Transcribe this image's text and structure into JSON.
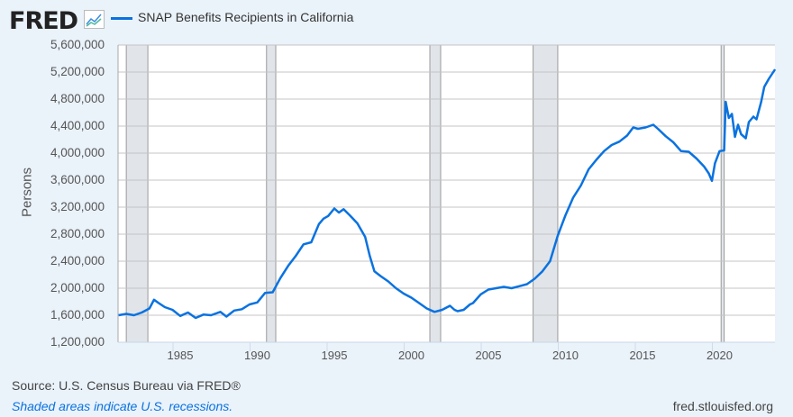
{
  "header": {
    "logo": "FRED",
    "logo_icon": "line-chart-icon"
  },
  "footer": {
    "source": "Source: U.S. Census Bureau via FRED®",
    "note": "Shaded areas indicate U.S. recessions.",
    "site": "fred.stlouisfed.org"
  },
  "chart_data": {
    "type": "line",
    "title": "",
    "xlabel": "",
    "ylabel": "Persons",
    "xlim": [
      1980.9,
      2023.6
    ],
    "ylim": [
      1200000,
      5600000
    ],
    "grid": true,
    "legend_placement": "top-left",
    "yticks": [
      1200000,
      1600000,
      2000000,
      2400000,
      2800000,
      3200000,
      3600000,
      4000000,
      4400000,
      4800000,
      5200000,
      5600000
    ],
    "ytick_labels": [
      "1,200,000",
      "1,600,000",
      "2,000,000",
      "2,400,000",
      "2,800,000",
      "3,200,000",
      "3,600,000",
      "4,000,000",
      "4,400,000",
      "4,800,000",
      "5,200,000",
      "5,600,000"
    ],
    "xticks": [
      1985,
      1990,
      1995,
      2000,
      2005,
      2010,
      2015,
      2020
    ],
    "xtick_labels": [
      "1985",
      "1990",
      "1995",
      "2000",
      "2005",
      "2010",
      "2015",
      "2020"
    ],
    "recessions": [
      [
        1981.5,
        1982.9
      ],
      [
        1990.6,
        1991.2
      ],
      [
        2001.2,
        2001.9
      ],
      [
        2007.9,
        2009.5
      ],
      [
        2020.1,
        2020.3
      ]
    ],
    "colors": {
      "line": "#0a72e0",
      "recession": "#e1e5ea",
      "background": "#eaf2fa"
    },
    "series": [
      {
        "name": "SNAP Benefits Recipients in California",
        "x": [
          1981.0,
          1981.5,
          1982,
          1982.5,
          1983,
          1983.3,
          1983.6,
          1984,
          1984.5,
          1985,
          1985.5,
          1986,
          1986.5,
          1987,
          1987.6,
          1988,
          1988.5,
          1989,
          1989.5,
          1990,
          1990.5,
          1991,
          1991.5,
          1992,
          1992.5,
          1993,
          1993.5,
          1994,
          1994.3,
          1994.6,
          1995,
          1995.3,
          1995.6,
          1996,
          1996.5,
          1997,
          1997.3,
          1997.6,
          1998,
          1998.5,
          1999,
          1999.5,
          2000,
          2000.5,
          2001,
          2001.5,
          2002,
          2002.5,
          2002.8,
          2003,
          2003.4,
          2003.8,
          2004,
          2004.5,
          2005,
          2005.5,
          2006,
          2006.5,
          2007,
          2007.5,
          2008,
          2008.5,
          2009,
          2009.5,
          2010,
          2010.5,
          2011,
          2011.5,
          2012,
          2012.5,
          2013,
          2013.5,
          2014,
          2014.4,
          2014.7,
          2015.2,
          2015.7,
          2016,
          2016.5,
          2017,
          2017.5,
          2018,
          2018.5,
          2019,
          2019.3,
          2019.5,
          2019.7,
          2020,
          2020.3,
          2020.4,
          2020.6,
          2020.8,
          2021,
          2021.2,
          2021.4,
          2021.7,
          2021.9,
          2022.2,
          2022.4,
          2022.7,
          2022.9,
          2023.2,
          2023.6
        ],
        "values": [
          1600000,
          1620000,
          1600000,
          1640000,
          1700000,
          1830000,
          1780000,
          1720000,
          1680000,
          1590000,
          1640000,
          1560000,
          1610000,
          1600000,
          1650000,
          1580000,
          1670000,
          1690000,
          1760000,
          1790000,
          1930000,
          1940000,
          2150000,
          2330000,
          2480000,
          2650000,
          2680000,
          2950000,
          3030000,
          3070000,
          3180000,
          3120000,
          3170000,
          3080000,
          2960000,
          2760000,
          2480000,
          2250000,
          2180000,
          2100000,
          2000000,
          1920000,
          1860000,
          1780000,
          1700000,
          1650000,
          1680000,
          1740000,
          1680000,
          1660000,
          1680000,
          1760000,
          1780000,
          1910000,
          1980000,
          2000000,
          2020000,
          2000000,
          2030000,
          2060000,
          2140000,
          2250000,
          2400000,
          2780000,
          3080000,
          3340000,
          3520000,
          3760000,
          3900000,
          4030000,
          4120000,
          4170000,
          4260000,
          4380000,
          4360000,
          4380000,
          4420000,
          4360000,
          4250000,
          4160000,
          4030000,
          4020000,
          3920000,
          3800000,
          3700000,
          3590000,
          3850000,
          4030000,
          4040000,
          4760000,
          4520000,
          4580000,
          4240000,
          4420000,
          4280000,
          4220000,
          4460000,
          4540000,
          4500000,
          4760000,
          4980000,
          5100000,
          5240000
        ]
      }
    ]
  }
}
